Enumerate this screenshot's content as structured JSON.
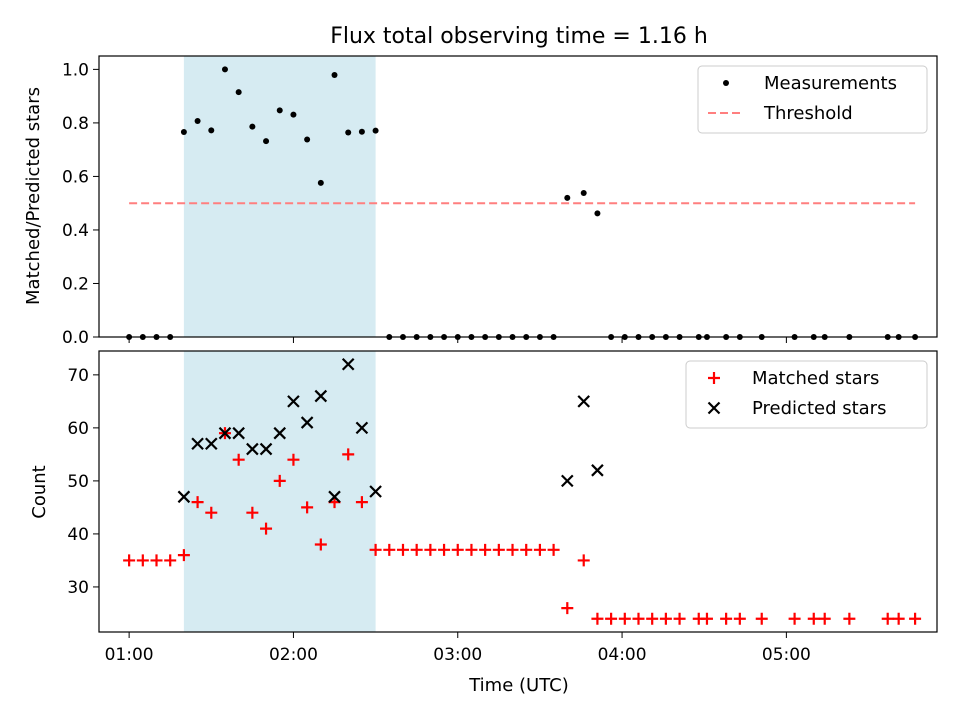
{
  "chart_data": [
    {
      "type": "scatter",
      "title": "Flux total observing time = 1.16 h",
      "xlabel": "",
      "ylabel": "Matched/Predicted stars",
      "xlim": [
        "00:49",
        "05:55"
      ],
      "ylim": [
        0,
        1.05
      ],
      "yticks": [
        0.0,
        0.2,
        0.4,
        0.6,
        0.8,
        1.0
      ],
      "ytick_labels": [
        "0.0",
        "0.2",
        "0.4",
        "0.6",
        "0.8",
        "1.0"
      ],
      "shaded_region": {
        "x": [
          "01:20",
          "02:30"
        ],
        "color": "#add8e6"
      },
      "legend": {
        "position": "top-right",
        "entries": [
          "Measurements",
          "Threshold"
        ]
      },
      "series": [
        {
          "name": "Measurements",
          "marker": "dot",
          "color": "#000000",
          "points": [
            [
              "01:00",
              0.0
            ],
            [
              "01:05",
              0.0
            ],
            [
              "01:10",
              0.0
            ],
            [
              "01:15",
              0.0
            ],
            [
              "01:20",
              0.766
            ],
            [
              "01:25",
              0.807
            ],
            [
              "01:30",
              0.772
            ],
            [
              "01:35",
              1.0
            ],
            [
              "01:40",
              0.915
            ],
            [
              "01:45",
              0.786
            ],
            [
              "01:50",
              0.732
            ],
            [
              "01:55",
              0.847
            ],
            [
              "02:00",
              0.831
            ],
            [
              "02:05",
              0.738
            ],
            [
              "02:10",
              0.576
            ],
            [
              "02:15",
              0.979
            ],
            [
              "02:20",
              0.764
            ],
            [
              "02:25",
              0.767
            ],
            [
              "02:30",
              0.771
            ],
            [
              "02:35",
              0.0
            ],
            [
              "02:40",
              0.0
            ],
            [
              "02:45",
              0.0
            ],
            [
              "02:50",
              0.0
            ],
            [
              "02:55",
              0.0
            ],
            [
              "03:00",
              0.0
            ],
            [
              "03:05",
              0.0
            ],
            [
              "03:10",
              0.0
            ],
            [
              "03:15",
              0.0
            ],
            [
              "03:20",
              0.0
            ],
            [
              "03:25",
              0.0
            ],
            [
              "03:30",
              0.0
            ],
            [
              "03:35",
              0.0
            ],
            [
              "03:40",
              0.52
            ],
            [
              "03:46",
              0.538
            ],
            [
              "03:51",
              0.462
            ],
            [
              "03:56",
              0.0
            ],
            [
              "04:01",
              0.0
            ],
            [
              "04:06",
              0.0
            ],
            [
              "04:11",
              0.0
            ],
            [
              "04:16",
              0.0
            ],
            [
              "04:21",
              0.0
            ],
            [
              "04:28",
              0.0
            ],
            [
              "04:31",
              0.0
            ],
            [
              "04:38",
              0.0
            ],
            [
              "04:43",
              0.0
            ],
            [
              "04:51",
              0.0
            ],
            [
              "05:03",
              0.0
            ],
            [
              "05:10",
              0.0
            ],
            [
              "05:14",
              0.0
            ],
            [
              "05:23",
              0.0
            ],
            [
              "05:37",
              0.0
            ],
            [
              "05:41",
              0.0
            ],
            [
              "05:47",
              0.0
            ]
          ]
        },
        {
          "name": "Threshold",
          "marker": "dashed-line",
          "color": "#ff7f7f",
          "points": [
            [
              "01:00",
              0.5
            ],
            [
              "05:47",
              0.5
            ]
          ]
        }
      ]
    },
    {
      "type": "scatter",
      "title": "",
      "xlabel": "Time (UTC)",
      "ylabel": "Count",
      "xlim": [
        "00:49",
        "05:55"
      ],
      "ylim": [
        21.5,
        74.5
      ],
      "yticks": [
        30,
        40,
        50,
        60,
        70
      ],
      "xticks": [
        "01:00",
        "02:00",
        "03:00",
        "04:00",
        "05:00"
      ],
      "shaded_region": {
        "x": [
          "01:20",
          "02:30"
        ],
        "color": "#add8e6"
      },
      "legend": {
        "position": "top-right",
        "entries": [
          "Matched stars",
          "Predicted stars"
        ]
      },
      "series": [
        {
          "name": "Matched stars",
          "marker": "plus",
          "color": "#ff0000",
          "points": [
            [
              "01:00",
              35
            ],
            [
              "01:05",
              35
            ],
            [
              "01:10",
              35
            ],
            [
              "01:15",
              35
            ],
            [
              "01:20",
              36
            ],
            [
              "01:25",
              46
            ],
            [
              "01:30",
              44
            ],
            [
              "01:35",
              59
            ],
            [
              "01:40",
              54
            ],
            [
              "01:45",
              44
            ],
            [
              "01:50",
              41
            ],
            [
              "01:55",
              50
            ],
            [
              "02:00",
              54
            ],
            [
              "02:05",
              45
            ],
            [
              "02:10",
              38
            ],
            [
              "02:15",
              46
            ],
            [
              "02:20",
              55
            ],
            [
              "02:25",
              46
            ],
            [
              "02:30",
              37
            ],
            [
              "02:35",
              37
            ],
            [
              "02:40",
              37
            ],
            [
              "02:45",
              37
            ],
            [
              "02:50",
              37
            ],
            [
              "02:55",
              37
            ],
            [
              "03:00",
              37
            ],
            [
              "03:05",
              37
            ],
            [
              "03:10",
              37
            ],
            [
              "03:15",
              37
            ],
            [
              "03:20",
              37
            ],
            [
              "03:25",
              37
            ],
            [
              "03:30",
              37
            ],
            [
              "03:35",
              37
            ],
            [
              "03:40",
              26
            ],
            [
              "03:46",
              35
            ],
            [
              "03:51",
              24
            ],
            [
              "03:56",
              24
            ],
            [
              "04:01",
              24
            ],
            [
              "04:06",
              24
            ],
            [
              "04:11",
              24
            ],
            [
              "04:16",
              24
            ],
            [
              "04:21",
              24
            ],
            [
              "04:28",
              24
            ],
            [
              "04:31",
              24
            ],
            [
              "04:38",
              24
            ],
            [
              "04:43",
              24
            ],
            [
              "04:51",
              24
            ],
            [
              "05:03",
              24
            ],
            [
              "05:10",
              24
            ],
            [
              "05:14",
              24
            ],
            [
              "05:23",
              24
            ],
            [
              "05:37",
              24
            ],
            [
              "05:41",
              24
            ],
            [
              "05:47",
              24
            ]
          ]
        },
        {
          "name": "Predicted stars",
          "marker": "x",
          "color": "#000000",
          "points": [
            [
              "01:20",
              47
            ],
            [
              "01:25",
              57
            ],
            [
              "01:30",
              57
            ],
            [
              "01:35",
              59
            ],
            [
              "01:40",
              59
            ],
            [
              "01:45",
              56
            ],
            [
              "01:50",
              56
            ],
            [
              "01:55",
              59
            ],
            [
              "02:00",
              65
            ],
            [
              "02:05",
              61
            ],
            [
              "02:10",
              66
            ],
            [
              "02:15",
              47
            ],
            [
              "02:20",
              72
            ],
            [
              "02:25",
              60
            ],
            [
              "02:30",
              48
            ],
            [
              "03:40",
              50
            ],
            [
              "03:46",
              65
            ],
            [
              "03:51",
              52
            ]
          ]
        }
      ]
    }
  ]
}
